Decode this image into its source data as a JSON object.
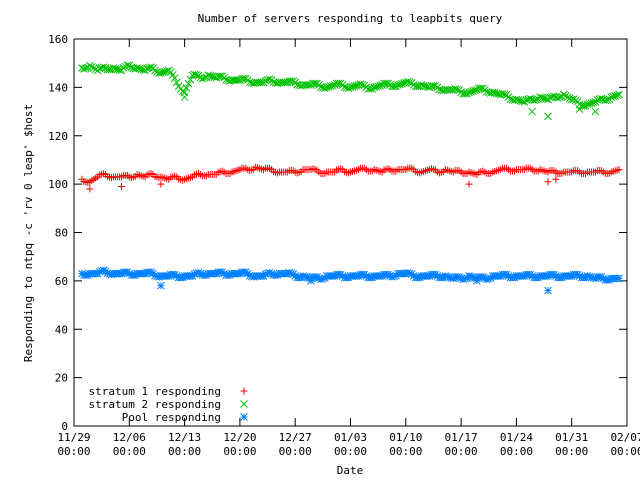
{
  "chart_data": {
    "type": "scatter",
    "title": "Number of servers responding to leapbits query",
    "xlabel": "Date",
    "ylabel": "Responding to ntpq -c 'rv 0 leap' $host",
    "ylim": [
      0,
      160
    ],
    "yticks": [
      "0",
      "20",
      "40",
      "60",
      "80",
      "100",
      "120",
      "140",
      "160"
    ],
    "xlim": [
      "11/29 00:00",
      "02/07 00:00"
    ],
    "xticks": [
      {
        "date": "11/29",
        "time": "00:00"
      },
      {
        "date": "12/06",
        "time": "00:00"
      },
      {
        "date": "12/13",
        "time": "00:00"
      },
      {
        "date": "12/20",
        "time": "00:00"
      },
      {
        "date": "12/27",
        "time": "00:00"
      },
      {
        "date": "01/03",
        "time": "00:00"
      },
      {
        "date": "01/10",
        "time": "00:00"
      },
      {
        "date": "01/17",
        "time": "00:00"
      },
      {
        "date": "01/24",
        "time": "00:00"
      },
      {
        "date": "01/31",
        "time": "00:00"
      },
      {
        "date": "02/07",
        "time": "00:00"
      }
    ],
    "grid": false,
    "legend_position": "bottom-left",
    "series": [
      {
        "name": "stratum 1 responding",
        "marker": "plus",
        "color": "#ff0000",
        "points": [
          [
            "11/30",
            102
          ],
          [
            "12/01",
            101
          ],
          [
            "12/02",
            103
          ],
          [
            "12/03",
            104
          ],
          [
            "12/04",
            103
          ],
          [
            "12/05",
            103
          ],
          [
            "12/06",
            103
          ],
          [
            "12/07",
            104
          ],
          [
            "12/08",
            103
          ],
          [
            "12/09",
            104
          ],
          [
            "12/10",
            103
          ],
          [
            "12/11",
            102
          ],
          [
            "12/12",
            103
          ],
          [
            "12/13",
            102
          ],
          [
            "12/14",
            103
          ],
          [
            "12/15",
            104
          ],
          [
            "12/16",
            104
          ],
          [
            "12/17",
            104
          ],
          [
            "12/18",
            105
          ],
          [
            "12/19",
            105
          ],
          [
            "12/20",
            106
          ],
          [
            "12/21",
            106
          ],
          [
            "12/22",
            107
          ],
          [
            "12/23",
            106
          ],
          [
            "12/24",
            106
          ],
          [
            "12/25",
            105
          ],
          [
            "12/26",
            105
          ],
          [
            "12/27",
            105
          ],
          [
            "12/28",
            106
          ],
          [
            "12/29",
            106
          ],
          [
            "12/30",
            105
          ],
          [
            "12/31",
            105
          ],
          [
            "01/01",
            105
          ],
          [
            "01/02",
            106
          ],
          [
            "01/03",
            105
          ],
          [
            "01/04",
            106
          ],
          [
            "01/05",
            106
          ],
          [
            "01/06",
            106
          ],
          [
            "01/07",
            105
          ],
          [
            "01/08",
            106
          ],
          [
            "01/09",
            106
          ],
          [
            "01/10",
            106
          ],
          [
            "01/11",
            106
          ],
          [
            "01/12",
            105
          ],
          [
            "01/13",
            106
          ],
          [
            "01/14",
            105
          ],
          [
            "01/15",
            106
          ],
          [
            "01/16",
            105
          ],
          [
            "01/17",
            105
          ],
          [
            "01/18",
            105
          ],
          [
            "01/19",
            104
          ],
          [
            "01/20",
            105
          ],
          [
            "01/21",
            105
          ],
          [
            "01/22",
            106
          ],
          [
            "01/23",
            106
          ],
          [
            "01/24",
            106
          ],
          [
            "01/25",
            106
          ],
          [
            "01/26",
            106
          ],
          [
            "01/27",
            106
          ],
          [
            "01/28",
            105
          ],
          [
            "01/29",
            105
          ],
          [
            "01/30",
            105
          ],
          [
            "01/31",
            105
          ],
          [
            "02/01",
            105
          ],
          [
            "02/02",
            105
          ],
          [
            "02/03",
            105
          ],
          [
            "02/04",
            105
          ],
          [
            "02/05",
            105
          ],
          [
            "02/06",
            106
          ],
          [
            "12/01",
            98
          ],
          [
            "12/05",
            99
          ],
          [
            "12/10",
            100
          ],
          [
            "01/18",
            100
          ],
          [
            "01/28",
            101
          ],
          [
            "01/29",
            102
          ]
        ]
      },
      {
        "name": "stratum 2 responding",
        "marker": "cross",
        "color": "#00c000",
        "points": [
          [
            "11/30",
            148
          ],
          [
            "12/01",
            149
          ],
          [
            "12/02",
            147
          ],
          [
            "12/03",
            148
          ],
          [
            "12/04",
            148
          ],
          [
            "12/05",
            147
          ],
          [
            "12/06",
            149
          ],
          [
            "12/07",
            148
          ],
          [
            "12/08",
            147
          ],
          [
            "12/09",
            148
          ],
          [
            "12/10",
            146
          ],
          [
            "12/11",
            147
          ],
          [
            "12/12",
            142
          ],
          [
            "12/13",
            138
          ],
          [
            "12/14",
            145
          ],
          [
            "12/15",
            144
          ],
          [
            "12/16",
            145
          ],
          [
            "12/17",
            144
          ],
          [
            "12/18",
            144
          ],
          [
            "12/19",
            143
          ],
          [
            "12/20",
            143
          ],
          [
            "12/21",
            143
          ],
          [
            "12/22",
            142
          ],
          [
            "12/23",
            142
          ],
          [
            "12/24",
            143
          ],
          [
            "12/25",
            142
          ],
          [
            "12/26",
            142
          ],
          [
            "12/27",
            142
          ],
          [
            "12/28",
            141
          ],
          [
            "12/29",
            141
          ],
          [
            "12/30",
            141
          ],
          [
            "12/31",
            140
          ],
          [
            "01/01",
            141
          ],
          [
            "01/02",
            141
          ],
          [
            "01/03",
            140
          ],
          [
            "01/04",
            141
          ],
          [
            "01/05",
            140
          ],
          [
            "01/06",
            140
          ],
          [
            "01/07",
            141
          ],
          [
            "01/08",
            141
          ],
          [
            "01/09",
            141
          ],
          [
            "01/10",
            142
          ],
          [
            "01/11",
            141
          ],
          [
            "01/12",
            141
          ],
          [
            "01/13",
            140
          ],
          [
            "01/14",
            140
          ],
          [
            "01/15",
            139
          ],
          [
            "01/16",
            139
          ],
          [
            "01/17",
            138
          ],
          [
            "01/18",
            138
          ],
          [
            "01/19",
            139
          ],
          [
            "01/20",
            139
          ],
          [
            "01/21",
            138
          ],
          [
            "01/22",
            137
          ],
          [
            "01/23",
            136
          ],
          [
            "01/24",
            135
          ],
          [
            "01/25",
            134
          ],
          [
            "01/26",
            135
          ],
          [
            "01/27",
            136
          ],
          [
            "01/28",
            135
          ],
          [
            "01/29",
            136
          ],
          [
            "01/30",
            137
          ],
          [
            "01/31",
            135
          ],
          [
            "02/01",
            133
          ],
          [
            "02/02",
            133
          ],
          [
            "02/03",
            134
          ],
          [
            "02/04",
            135
          ],
          [
            "02/05",
            136
          ],
          [
            "02/06",
            137
          ],
          [
            "12/13",
            136
          ],
          [
            "01/26",
            130
          ],
          [
            "01/28",
            128
          ],
          [
            "02/01",
            131
          ],
          [
            "02/03",
            130
          ]
        ]
      },
      {
        "name": "Pool responding",
        "marker": "asterisk",
        "color": "#0080ff",
        "points": [
          [
            "11/30",
            63
          ],
          [
            "12/01",
            63
          ],
          [
            "12/02",
            63
          ],
          [
            "12/03",
            64
          ],
          [
            "12/04",
            63
          ],
          [
            "12/05",
            63
          ],
          [
            "12/06",
            63
          ],
          [
            "12/07",
            63
          ],
          [
            "12/08",
            63
          ],
          [
            "12/09",
            63
          ],
          [
            "12/10",
            62
          ],
          [
            "12/11",
            62
          ],
          [
            "12/12",
            62
          ],
          [
            "12/13",
            62
          ],
          [
            "12/14",
            62
          ],
          [
            "12/15",
            63
          ],
          [
            "12/16",
            63
          ],
          [
            "12/17",
            63
          ],
          [
            "12/18",
            63
          ],
          [
            "12/19",
            63
          ],
          [
            "12/20",
            63
          ],
          [
            "12/21",
            63
          ],
          [
            "12/22",
            62
          ],
          [
            "12/23",
            62
          ],
          [
            "12/24",
            63
          ],
          [
            "12/25",
            63
          ],
          [
            "12/26",
            63
          ],
          [
            "12/27",
            62
          ],
          [
            "12/28",
            62
          ],
          [
            "12/29",
            61
          ],
          [
            "12/30",
            61
          ],
          [
            "12/31",
            62
          ],
          [
            "01/01",
            62
          ],
          [
            "01/02",
            62
          ],
          [
            "01/03",
            62
          ],
          [
            "01/04",
            62
          ],
          [
            "01/05",
            62
          ],
          [
            "01/06",
            62
          ],
          [
            "01/07",
            62
          ],
          [
            "01/08",
            62
          ],
          [
            "01/09",
            63
          ],
          [
            "01/10",
            63
          ],
          [
            "01/11",
            62
          ],
          [
            "01/12",
            62
          ],
          [
            "01/13",
            62
          ],
          [
            "01/14",
            62
          ],
          [
            "01/15",
            62
          ],
          [
            "01/16",
            61
          ],
          [
            "01/17",
            61
          ],
          [
            "01/18",
            62
          ],
          [
            "01/19",
            61
          ],
          [
            "01/20",
            61
          ],
          [
            "01/21",
            62
          ],
          [
            "01/22",
            62
          ],
          [
            "01/23",
            62
          ],
          [
            "01/24",
            62
          ],
          [
            "01/25",
            62
          ],
          [
            "01/26",
            62
          ],
          [
            "01/27",
            62
          ],
          [
            "01/28",
            62
          ],
          [
            "01/29",
            62
          ],
          [
            "01/30",
            62
          ],
          [
            "01/31",
            62
          ],
          [
            "02/01",
            62
          ],
          [
            "02/02",
            62
          ],
          [
            "02/03",
            61
          ],
          [
            "02/04",
            61
          ],
          [
            "02/05",
            61
          ],
          [
            "02/06",
            61
          ],
          [
            "12/10",
            58
          ],
          [
            "12/29",
            60
          ],
          [
            "01/28",
            56
          ],
          [
            "01/19",
            60
          ]
        ]
      }
    ]
  }
}
